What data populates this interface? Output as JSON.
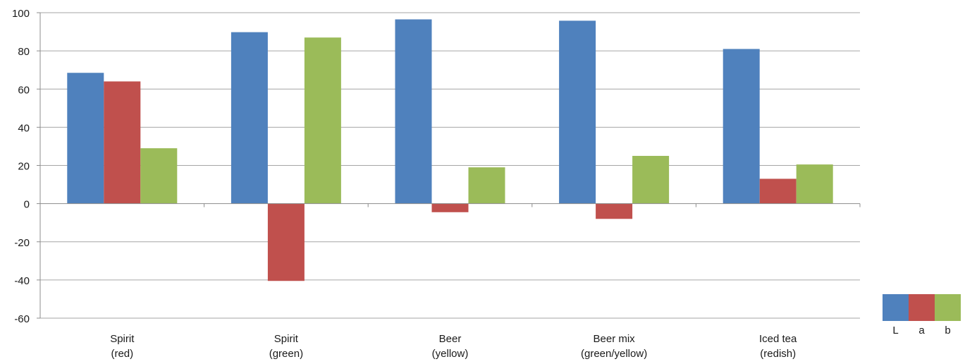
{
  "chart_data": {
    "type": "bar",
    "categories": [
      [
        "Spirit",
        "(red)"
      ],
      [
        "Spirit",
        "(green)"
      ],
      [
        "Beer",
        "(yellow)"
      ],
      [
        "Beer mix",
        "(green/yellow)"
      ],
      [
        "Iced tea",
        "(redish)"
      ]
    ],
    "series": [
      {
        "name": "L",
        "color": "#4F81BD",
        "values": [
          68.5,
          89.8,
          96.5,
          95.8,
          81.0
        ]
      },
      {
        "name": "a",
        "color": "#C0504D",
        "values": [
          64.0,
          -40.5,
          -4.5,
          -8.0,
          13.0
        ]
      },
      {
        "name": "b",
        "color": "#9BBB59",
        "values": [
          29.0,
          87.0,
          19.0,
          25.0,
          20.5
        ]
      }
    ],
    "ylim": [
      -60,
      100
    ],
    "yticks": [
      100,
      80,
      60,
      40,
      20,
      0,
      -20,
      -40,
      -60
    ],
    "grid": true,
    "legend_position": "bottom-right"
  }
}
